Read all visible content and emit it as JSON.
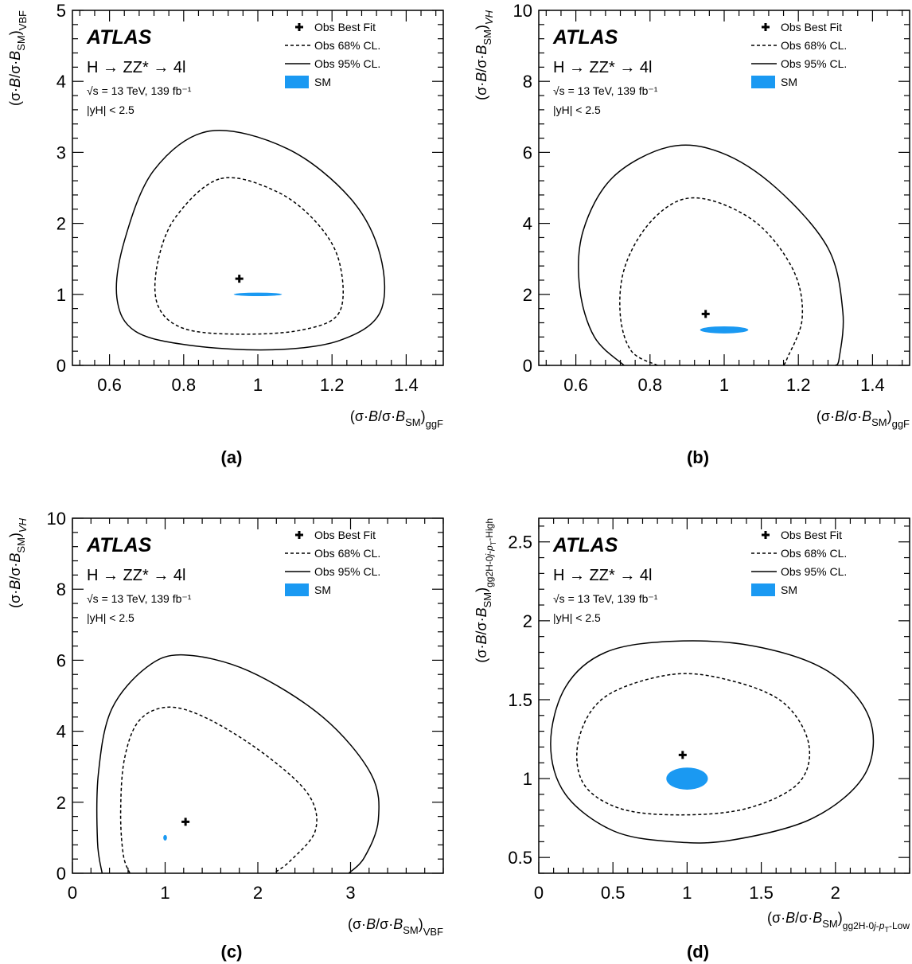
{
  "figure": {
    "panels": [
      {
        "label": "(a)",
        "atlas": "ATLAS",
        "process": "H → ZZ* → 4l",
        "energy": "√s = 13 TeV, 139 fb⁻¹",
        "rapidity": "|yH| < 2.5",
        "xlabel": "(σ·B/σ·B_SM)_ggF",
        "ylabel": "(σ·B/σ·B_SM)_VBF",
        "legend": {
          "best_fit": "Obs Best Fit",
          "cl68": "Obs 68% CL.",
          "cl95": "Obs 95% CL.",
          "sm": "SM"
        }
      },
      {
        "label": "(b)",
        "atlas": "ATLAS",
        "process": "H → ZZ* → 4l",
        "energy": "√s = 13 TeV, 139 fb⁻¹",
        "rapidity": "|yH| < 2.5",
        "xlabel": "(σ·B/σ·B_SM)_ggF",
        "ylabel": "(σ·B/σ·B_SM)_VH",
        "legend": {
          "best_fit": "Obs Best Fit",
          "cl68": "Obs 68% CL.",
          "cl95": "Obs 95% CL.",
          "sm": "SM"
        }
      },
      {
        "label": "(c)",
        "atlas": "ATLAS",
        "process": "H → ZZ* → 4l",
        "energy": "√s = 13 TeV, 139 fb⁻¹",
        "rapidity": "|yH| < 2.5",
        "xlabel": "(σ·B/σ·B_SM)_VBF",
        "ylabel": "(σ·B/σ·B_SM)_VH",
        "legend": {
          "best_fit": "Obs Best Fit",
          "cl68": "Obs 68% CL.",
          "cl95": "Obs 95% CL.",
          "sm": "SM"
        }
      },
      {
        "label": "(d)",
        "atlas": "ATLAS",
        "process": "H → ZZ* → 4l",
        "energy": "√s = 13 TeV, 139 fb⁻¹",
        "rapidity": "|yH| < 2.5",
        "xlabel": "(σ·B/σ·B_SM)_gg2H-0j-pT^H-Low",
        "ylabel": "(σ·B/σ·B_SM)_gg2H-0j-pT^H-High",
        "legend": {
          "best_fit": "Obs Best Fit",
          "cl68": "Obs 68% CL.",
          "cl95": "Obs 95% CL.",
          "sm": "SM"
        }
      }
    ],
    "colors": {
      "sm": "#1a99f2",
      "line": "#000000"
    }
  },
  "chart_data": [
    {
      "type": "contour",
      "title": "",
      "xlabel": "(σ·B/σ·B_SM)_ggF",
      "ylabel": "(σ·B/σ·B_SM)_VBF",
      "xlim": [
        0.5,
        1.5
      ],
      "ylim": [
        0,
        5
      ],
      "xticks": [
        0.6,
        0.8,
        1,
        1.2,
        1.4
      ],
      "yticks": [
        0,
        1,
        2,
        3,
        4,
        5
      ],
      "best_fit": [
        0.95,
        1.22
      ],
      "sm": {
        "x": 1,
        "y": 1,
        "rx": 0.065,
        "ry": 0.025
      },
      "contour_68": [
        [
          0.9,
          2.63
        ],
        [
          1.05,
          2.45
        ],
        [
          1.16,
          2.0
        ],
        [
          1.22,
          1.45
        ],
        [
          1.22,
          0.75
        ],
        [
          1.12,
          0.5
        ],
        [
          0.95,
          0.44
        ],
        [
          0.8,
          0.52
        ],
        [
          0.73,
          0.85
        ],
        [
          0.73,
          1.45
        ],
        [
          0.78,
          2.1
        ]
      ],
      "contour_95": [
        [
          0.87,
          3.3
        ],
        [
          1.08,
          3.05
        ],
        [
          1.25,
          2.35
        ],
        [
          1.33,
          1.55
        ],
        [
          1.33,
          0.75
        ],
        [
          1.22,
          0.35
        ],
        [
          1.04,
          0.22
        ],
        [
          0.82,
          0.28
        ],
        [
          0.67,
          0.48
        ],
        [
          0.62,
          0.95
        ],
        [
          0.64,
          1.75
        ],
        [
          0.72,
          2.75
        ]
      ]
    },
    {
      "type": "contour",
      "title": "",
      "xlabel": "(σ·B/σ·B_SM)_ggF",
      "ylabel": "(σ·B/σ·B_SM)_VH",
      "xlim": [
        0.5,
        1.5
      ],
      "ylim": [
        0,
        10
      ],
      "xticks": [
        0.6,
        0.8,
        1,
        1.2,
        1.4
      ],
      "yticks": [
        0,
        2,
        4,
        6,
        8,
        10
      ],
      "best_fit": [
        0.95,
        1.45
      ],
      "sm": {
        "x": 1,
        "y": 1,
        "rx": 0.065,
        "ry": 0.1
      },
      "contour_68": [
        [
          0.82,
          0.0
        ],
        [
          0.75,
          0.4
        ],
        [
          0.72,
          1.4
        ],
        [
          0.73,
          2.7
        ],
        [
          0.79,
          3.9
        ],
        [
          0.88,
          4.65
        ],
        [
          0.98,
          4.6
        ],
        [
          1.1,
          3.9
        ],
        [
          1.19,
          2.6
        ],
        [
          1.21,
          1.3
        ],
        [
          1.17,
          0.2
        ],
        [
          1.16,
          0.0
        ]
      ],
      "contour_95": [
        [
          0.73,
          0.0
        ],
        [
          0.65,
          0.8
        ],
        [
          0.61,
          2.2
        ],
        [
          0.62,
          3.8
        ],
        [
          0.7,
          5.3
        ],
        [
          0.85,
          6.15
        ],
        [
          0.99,
          6.0
        ],
        [
          1.14,
          5.0
        ],
        [
          1.28,
          3.3
        ],
        [
          1.32,
          1.5
        ],
        [
          1.31,
          0.2
        ],
        [
          1.3,
          0.0
        ]
      ]
    },
    {
      "type": "contour",
      "title": "",
      "xlabel": "(σ·B/σ·B_SM)_VBF",
      "ylabel": "(σ·B/σ·B_SM)_VH",
      "xlim": [
        0,
        4
      ],
      "ylim": [
        0,
        10
      ],
      "xticks": [
        0,
        1,
        2,
        3
      ],
      "yticks": [
        0,
        2,
        4,
        6,
        8,
        10
      ],
      "best_fit": [
        1.22,
        1.45
      ],
      "sm": {
        "x": 1,
        "y": 1,
        "rx": 0.02,
        "ry": 0.08
      },
      "contour_68": [
        [
          0.62,
          0.0
        ],
        [
          0.55,
          0.5
        ],
        [
          0.52,
          1.7
        ],
        [
          0.56,
          3.2
        ],
        [
          0.72,
          4.3
        ],
        [
          1.05,
          4.68
        ],
        [
          1.5,
          4.3
        ],
        [
          2.1,
          3.3
        ],
        [
          2.55,
          2.2
        ],
        [
          2.62,
          1.2
        ],
        [
          2.35,
          0.35
        ],
        [
          2.17,
          0.0
        ]
      ],
      "contour_95": [
        [
          0.32,
          0.0
        ],
        [
          0.27,
          0.9
        ],
        [
          0.28,
          2.8
        ],
        [
          0.42,
          4.6
        ],
        [
          0.8,
          5.8
        ],
        [
          1.2,
          6.15
        ],
        [
          1.9,
          5.7
        ],
        [
          2.7,
          4.4
        ],
        [
          3.22,
          2.8
        ],
        [
          3.3,
          1.5
        ],
        [
          3.15,
          0.45
        ],
        [
          2.98,
          0.0
        ]
      ]
    },
    {
      "type": "contour",
      "title": "",
      "xlabel": "(σ·B/σ·B_SM)_gg2H-0j-pT^H-Low",
      "ylabel": "(σ·B/σ·B_SM)_gg2H-0j-pT^H-High",
      "xlim": [
        0,
        2.5
      ],
      "ylim": [
        0.4,
        2.65
      ],
      "xticks": [
        0,
        0.5,
        1,
        1.5,
        2
      ],
      "yticks": [
        0.5,
        1,
        1.5,
        2,
        2.5
      ],
      "best_fit": [
        0.97,
        1.15
      ],
      "sm": {
        "x": 1,
        "y": 1,
        "rx": 0.14,
        "ry": 0.07
      },
      "contour_68": [
        [
          0.9,
          1.66
        ],
        [
          1.3,
          1.62
        ],
        [
          1.65,
          1.48
        ],
        [
          1.82,
          1.22
        ],
        [
          1.75,
          0.97
        ],
        [
          1.4,
          0.81
        ],
        [
          0.95,
          0.77
        ],
        [
          0.55,
          0.81
        ],
        [
          0.3,
          0.97
        ],
        [
          0.27,
          1.25
        ],
        [
          0.45,
          1.52
        ]
      ],
      "contour_95": [
        [
          0.9,
          1.87
        ],
        [
          1.45,
          1.84
        ],
        [
          1.95,
          1.68
        ],
        [
          2.23,
          1.38
        ],
        [
          2.2,
          1.03
        ],
        [
          1.85,
          0.75
        ],
        [
          1.3,
          0.61
        ],
        [
          0.9,
          0.6
        ],
        [
          0.5,
          0.67
        ],
        [
          0.18,
          0.9
        ],
        [
          0.08,
          1.22
        ],
        [
          0.18,
          1.58
        ],
        [
          0.45,
          1.8
        ]
      ]
    }
  ]
}
